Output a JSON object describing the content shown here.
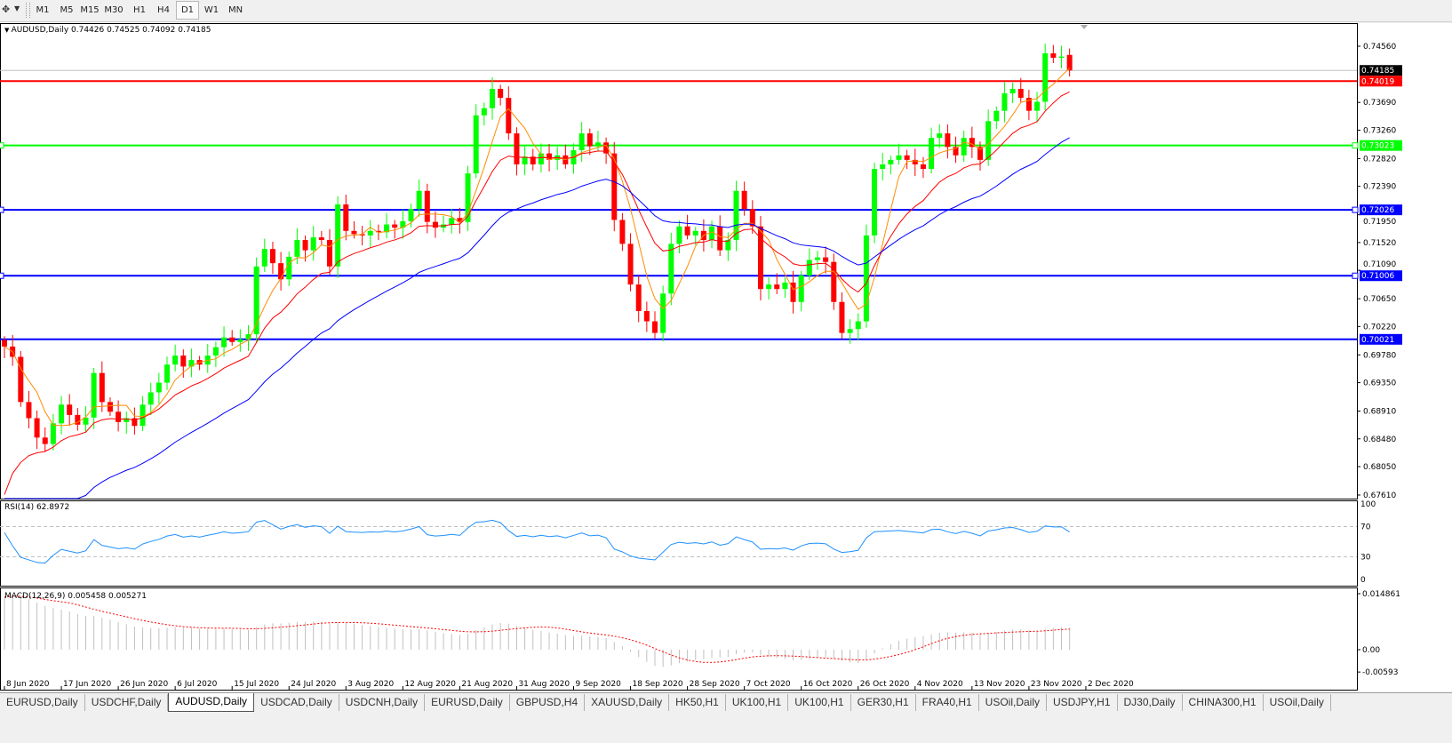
{
  "toolbar": {
    "timeframes": [
      "M1",
      "M5",
      "M15",
      "M30",
      "H1",
      "H4",
      "D1",
      "W1",
      "MN"
    ],
    "active": "D1"
  },
  "chart": {
    "header": "AUDUSD,Daily  0.74426 0.74525 0.74092 0.74185",
    "rsi_label": "RSI(14) 62.8972",
    "macd_label": "MACD(12,26,9) 0.005458 0.005271"
  },
  "chart_data": {
    "type": "candlestick",
    "symbol": "AUDUSD",
    "timeframe": "Daily",
    "last_bar": {
      "open": 0.74426,
      "high": 0.74525,
      "low": 0.74092,
      "close": 0.74185
    },
    "ylim": [
      0.6761,
      0.7456
    ],
    "price_ticks": [
      "0.74560",
      "0.73690",
      "0.73260",
      "0.72820",
      "0.72390",
      "0.71950",
      "0.71520",
      "0.71090",
      "0.70650",
      "0.70220",
      "0.69780",
      "0.69350",
      "0.68910",
      "0.68480",
      "0.68050",
      "0.67610"
    ],
    "date_ticks": [
      "8 Jun 2020",
      "17 Jun 2020",
      "26 Jun 2020",
      "6 Jul 2020",
      "15 Jul 2020",
      "24 Jul 2020",
      "3 Aug 2020",
      "12 Aug 2020",
      "21 Aug 2020",
      "31 Aug 2020",
      "9 Sep 2020",
      "18 Sep 2020",
      "28 Sep 2020",
      "7 Oct 2020",
      "16 Oct 2020",
      "26 Oct 2020",
      "4 Nov 2020",
      "13 Nov 2020",
      "23 Nov 2020",
      "2 Dec 2020"
    ],
    "closes": [
      0.6991,
      0.6975,
      0.6905,
      0.688,
      0.685,
      0.684,
      0.6872,
      0.6901,
      0.6885,
      0.687,
      0.6881,
      0.695,
      0.6905,
      0.689,
      0.6874,
      0.688,
      0.6868,
      0.6901,
      0.692,
      0.6935,
      0.6963,
      0.6977,
      0.696,
      0.697,
      0.6963,
      0.6977,
      0.699,
      0.7005,
      0.6998,
      0.7002,
      0.701,
      0.7115,
      0.7142,
      0.712,
      0.7095,
      0.713,
      0.7156,
      0.714,
      0.716,
      0.7156,
      0.7115,
      0.7211,
      0.717,
      0.7165,
      0.7163,
      0.717,
      0.7168,
      0.718,
      0.7175,
      0.7185,
      0.7204,
      0.7232,
      0.7184,
      0.7175,
      0.718,
      0.719,
      0.7184,
      0.7259,
      0.7349,
      0.736,
      0.739,
      0.7376,
      0.7321,
      0.7273,
      0.7285,
      0.7273,
      0.729,
      0.728,
      0.7287,
      0.7273,
      0.7295,
      0.7321,
      0.7301,
      0.7307,
      0.729,
      0.7187,
      0.715,
      0.7087,
      0.7046,
      0.703,
      0.7012,
      0.7073,
      0.715,
      0.7177,
      0.7163,
      0.717,
      0.7156,
      0.7177,
      0.714,
      0.7156,
      0.7232,
      0.7204,
      0.7177,
      0.708,
      0.7087,
      0.708,
      0.709,
      0.706,
      0.7101,
      0.7125,
      0.7129,
      0.7122,
      0.706,
      0.7012,
      0.7018,
      0.703,
      0.7163,
      0.7266,
      0.7273,
      0.728,
      0.7287,
      0.728,
      0.7273,
      0.7266,
      0.7314,
      0.7321,
      0.73,
      0.7287,
      0.7314,
      0.73,
      0.728,
      0.734,
      0.7356,
      0.7383,
      0.739,
      0.7376,
      0.7356,
      0.737,
      0.7445,
      0.7438,
      0.744,
      0.74185
    ],
    "bull_color": "#00ff00",
    "bear_color": "#ff0000",
    "moving_averages": [
      {
        "color": "#ff8c00"
      },
      {
        "color": "#ff0000"
      },
      {
        "color": "#0000ff"
      }
    ],
    "levels": [
      {
        "label": "0.74185",
        "value": 0.74185,
        "color": "#c0c0c0",
        "badge": "#000000"
      },
      {
        "label": "0.74019",
        "value": 0.74019,
        "color": "#ff0000",
        "badge": "#ff0000"
      },
      {
        "label": "0.73023",
        "value": 0.73023,
        "color": "#00ff00",
        "badge": "#00ff00"
      },
      {
        "label": "0.72026",
        "value": 0.72026,
        "color": "#0000ff",
        "badge": "#0000ff"
      },
      {
        "label": "0.71006",
        "value": 0.71006,
        "color": "#0000ff",
        "badge": "#0000ff"
      },
      {
        "label": "0.70021",
        "value": 0.70021,
        "color": "#0000ff",
        "badge": "#0000ff"
      }
    ],
    "rsi": {
      "period": 14,
      "value": 62.8972,
      "levels": [
        70,
        30
      ],
      "ticks": [
        "100",
        "70",
        "30",
        "0"
      ],
      "ylim": [
        0,
        100
      ],
      "color": "#1e90ff"
    },
    "macd": {
      "fast": 12,
      "slow": 26,
      "signal": 9,
      "main": 0.005458,
      "signal_value": 0.005271,
      "ticks": [
        "0.014861",
        "0.00",
        "-0.00593"
      ],
      "ylim": [
        -0.00593,
        0.014861
      ],
      "hist_color": "#c0c0c0",
      "signal_color": "#ff0000"
    }
  },
  "tabs": {
    "items": [
      "EURUSD,Daily",
      "USDCHF,Daily",
      "AUDUSD,Daily",
      "USDCAD,Daily",
      "USDCNH,Daily",
      "EURUSD,Daily",
      "GBPUSD,H4",
      "XAUUSD,Daily",
      "HK50,H1",
      "UK100,H1",
      "UK100,H1",
      "GER30,H1",
      "FRA40,H1",
      "USOil,Daily",
      "USDJPY,H1",
      "DJ30,Daily",
      "CHINA300,H1",
      "USOil,Daily"
    ],
    "active": 2
  }
}
